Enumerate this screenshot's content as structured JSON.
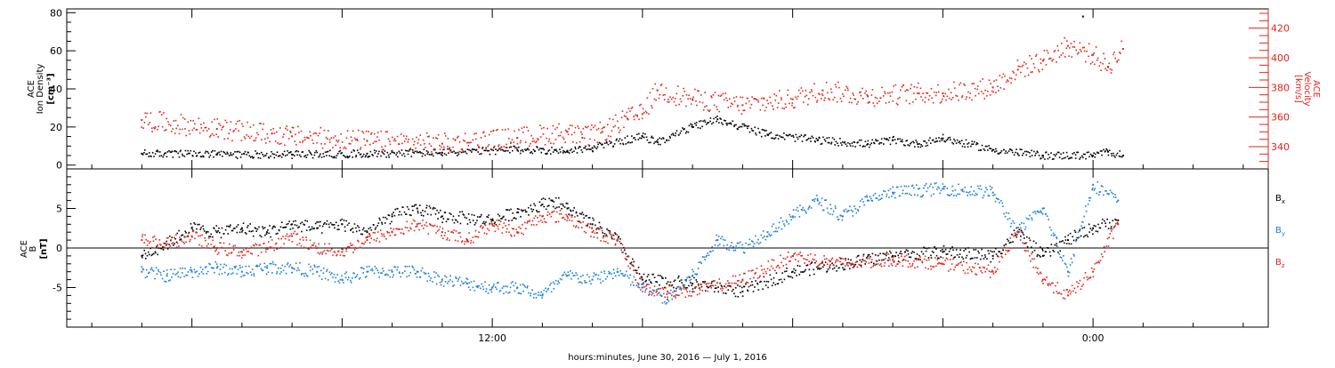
{
  "chart_data": [
    {
      "type": "scatter",
      "panel": "top",
      "ylabel_lines": [
        "ACE",
        "Ion Density",
        "[cm⁻³]"
      ],
      "ylim": [
        -2,
        82
      ],
      "yticks": [
        0,
        20,
        40,
        60,
        80
      ],
      "y2label_lines": [
        "ACE",
        "Velocity",
        "[km/s]"
      ],
      "y2lim": [
        325,
        433
      ],
      "y2ticks": [
        340,
        360,
        380,
        400,
        420
      ],
      "series": [
        {
          "axis": "left",
          "color": "#000000",
          "x": [
            -7,
            -5.5,
            -4,
            -2.5,
            -1,
            0.5,
            1.5,
            2,
            3,
            3.3,
            4,
            4.5,
            5.5,
            6.5,
            7.5,
            8,
            8.5,
            9,
            10,
            11,
            12,
            12.3,
            12.6
          ],
          "values": [
            6,
            5.5,
            5.5,
            6,
            6.5,
            8,
            7.5,
            9,
            15,
            12,
            20,
            24,
            16,
            13,
            11,
            13,
            11,
            14,
            8,
            5,
            5,
            7,
            5
          ]
        },
        {
          "axis": "right",
          "color": "#e0251b",
          "x": [
            -7,
            -5.5,
            -4,
            -2.5,
            -1,
            0.5,
            1.5,
            1.8,
            2.2,
            2.7,
            3,
            3.3,
            4,
            5,
            6,
            6.6,
            7.5,
            8.5,
            9,
            10,
            10.5,
            11,
            11.5,
            12,
            12.3,
            12.6
          ],
          "values": [
            358,
            352,
            347,
            344,
            342,
            346,
            350,
            346,
            350,
            359,
            362,
            378,
            372,
            368,
            372,
            378,
            374,
            376,
            376,
            380,
            392,
            398,
            408,
            402,
            394,
            406
          ]
        }
      ]
    },
    {
      "type": "scatter",
      "panel": "bottom",
      "ylabel_lines": [
        "ACE",
        "B",
        "[nT]"
      ],
      "ylim": [
        -10,
        10
      ],
      "yticks": [
        -5,
        0,
        5
      ],
      "zero_line": true,
      "legend": [
        {
          "label": "B",
          "sub": "x",
          "color": "#000000"
        },
        {
          "label": "B",
          "sub": "y",
          "color": "#1a7fd6"
        },
        {
          "label": "B",
          "sub": "z",
          "color": "#e0251b"
        }
      ],
      "legend_position": "right",
      "series": [
        {
          "color": "#000000",
          "x": [
            -7,
            -6.5,
            -6,
            -5.5,
            -5,
            -4.5,
            -4,
            -3.5,
            -3,
            -2.5,
            -2,
            -1.5,
            -1,
            0,
            0.5,
            1,
            1.2,
            1.5,
            2,
            2.5,
            3,
            4,
            5,
            6,
            7,
            8,
            9,
            10,
            10.5,
            11,
            11.5,
            12,
            12.5
          ],
          "values": [
            -1,
            0.5,
            2.5,
            2,
            2.5,
            2,
            3,
            2.5,
            3,
            2,
            4,
            5,
            4,
            3.5,
            4.5,
            5.5,
            6,
            5,
            3,
            1,
            -4,
            -4.5,
            -5.5,
            -3,
            -2,
            -1,
            -0.5,
            -1,
            2,
            -1,
            1,
            2.5,
            3.5
          ]
        },
        {
          "color": "#1a7fd6",
          "x": [
            -7,
            -6.5,
            -6,
            -5.5,
            -5,
            -4.5,
            -4,
            -3.5,
            -3,
            -2.5,
            -2,
            -1.5,
            -1,
            -0.5,
            0,
            0.5,
            1,
            1.5,
            2,
            2.5,
            3,
            3.5,
            4,
            4.5,
            5,
            5.5,
            6,
            6.5,
            7,
            7.5,
            8,
            9,
            10,
            10.5,
            11,
            11.5,
            12,
            12.5
          ],
          "values": [
            -3,
            -3.5,
            -3,
            -2.5,
            -3,
            -2.5,
            -2.5,
            -3,
            -4,
            -3,
            -3,
            -3,
            -4,
            -4.5,
            -5,
            -5,
            -6,
            -3.5,
            -4,
            -3,
            -5,
            -6.5,
            -3.5,
            1,
            0,
            2,
            4,
            6,
            4,
            6,
            7,
            7.5,
            7,
            2,
            5,
            -3,
            8,
            6
          ]
        },
        {
          "color": "#e0251b",
          "x": [
            -7,
            -6.5,
            -6,
            -5.5,
            -5,
            -4.5,
            -4,
            -3.5,
            -3,
            -2.5,
            -2,
            -1.5,
            -1,
            -0.5,
            0,
            0.5,
            1,
            1.5,
            2,
            2.5,
            3,
            3.5,
            4,
            5,
            6,
            7,
            8,
            9,
            10,
            10.5,
            11,
            11.5,
            12,
            12.5
          ],
          "values": [
            1,
            0.5,
            1.5,
            0,
            -0.5,
            0,
            1.5,
            0,
            -0.5,
            1,
            2,
            3,
            2,
            1,
            3,
            2,
            4,
            4,
            2,
            1,
            -5,
            -5.5,
            -5.5,
            -4,
            -1,
            -2,
            -1.5,
            -2,
            -3,
            2,
            -4,
            -6,
            -3,
            3
          ]
        }
      ]
    }
  ],
  "x_axis": {
    "xlim": [
      -8.5,
      15.5
    ],
    "major_ticks": [
      -6,
      -3,
      0,
      3,
      6,
      9,
      12
    ],
    "tick_labels": [
      {
        "x": 0,
        "label": "12:00"
      },
      {
        "x": 12,
        "label": "0:00"
      }
    ],
    "xlabel": "hours:minutes, June 30, 2016 — July  1, 2016"
  },
  "isolated_marks": [
    {
      "panel": "top",
      "x": 11.8,
      "value": 78,
      "color": "#000000"
    }
  ]
}
